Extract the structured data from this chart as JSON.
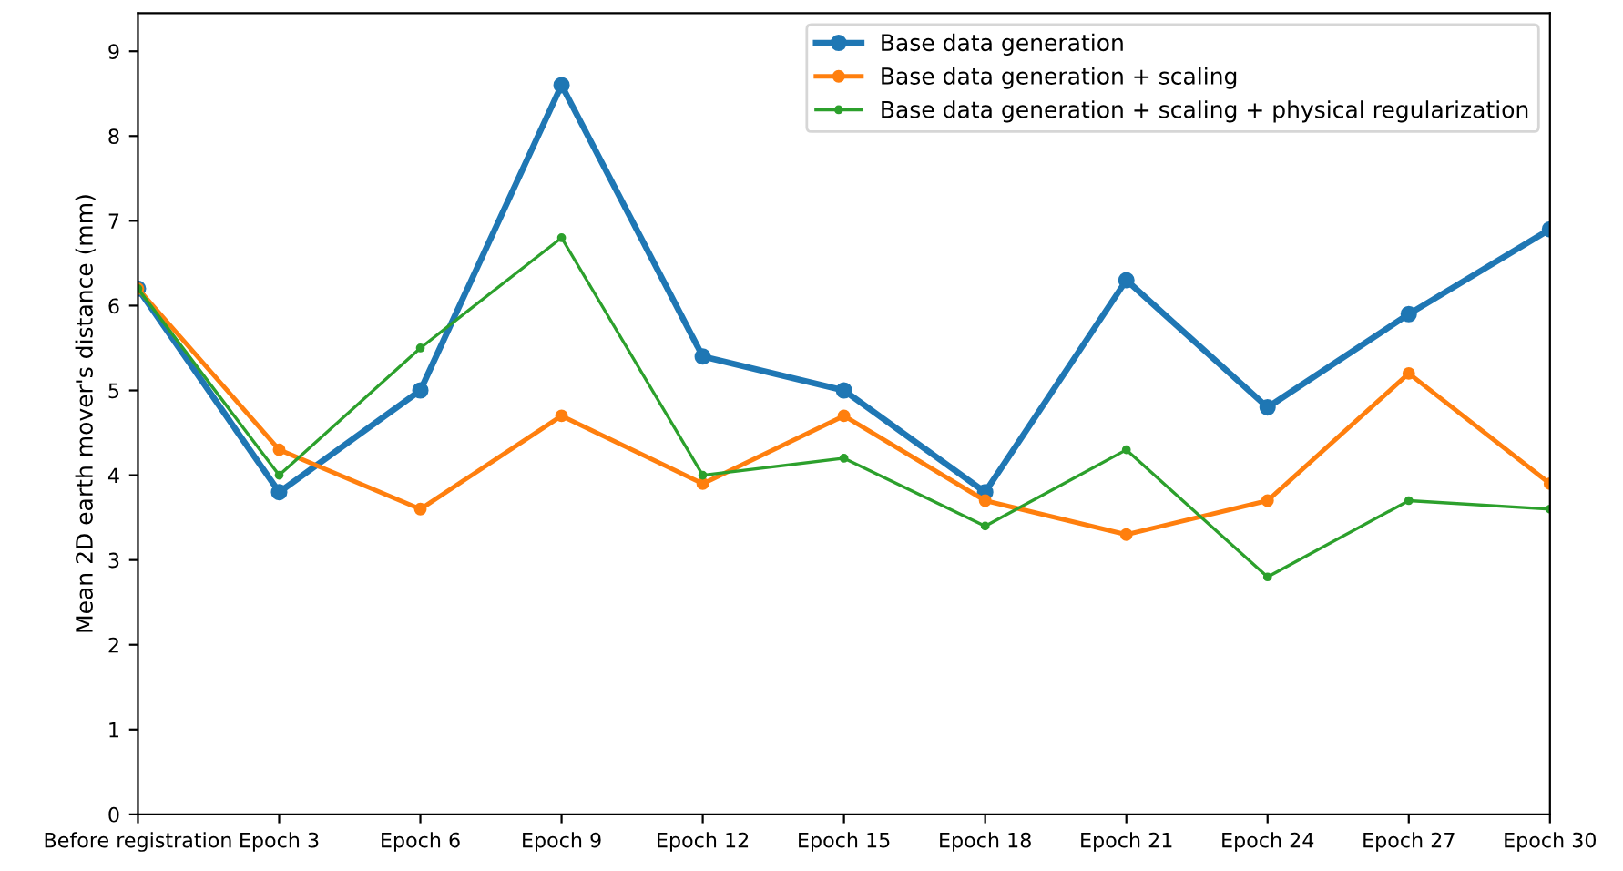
{
  "chart_data": {
    "type": "line",
    "ylabel": "Mean 2D earth mover's distance (mm)",
    "categories": [
      "Before registration",
      "Epoch 3",
      "Epoch 6",
      "Epoch 9",
      "Epoch 12",
      "Epoch 15",
      "Epoch 18",
      "Epoch 21",
      "Epoch 24",
      "Epoch 27",
      "Epoch 30"
    ],
    "series": [
      {
        "name": "Base data generation",
        "color": "#1f77b4",
        "values": [
          6.2,
          3.8,
          5.0,
          8.6,
          5.4,
          5.0,
          3.8,
          6.3,
          4.8,
          5.9,
          6.9
        ]
      },
      {
        "name": "Base data generation + scaling",
        "color": "#ff7f0e",
        "values": [
          6.2,
          4.3,
          3.6,
          4.7,
          3.9,
          4.7,
          3.7,
          3.3,
          3.7,
          5.2,
          3.9
        ]
      },
      {
        "name": "Base data generation + scaling + physical regularization",
        "color": "#2ca02c",
        "values": [
          6.2,
          4.0,
          5.5,
          6.8,
          4.0,
          4.2,
          3.4,
          4.3,
          2.8,
          3.7,
          3.6
        ]
      }
    ],
    "ylim": [
      0,
      9.45
    ],
    "yticks": [
      0,
      1,
      2,
      3,
      4,
      5,
      6,
      7,
      8,
      9
    ],
    "legend": "top right",
    "marker": "circle",
    "line_style": "solid",
    "grid": false
  }
}
